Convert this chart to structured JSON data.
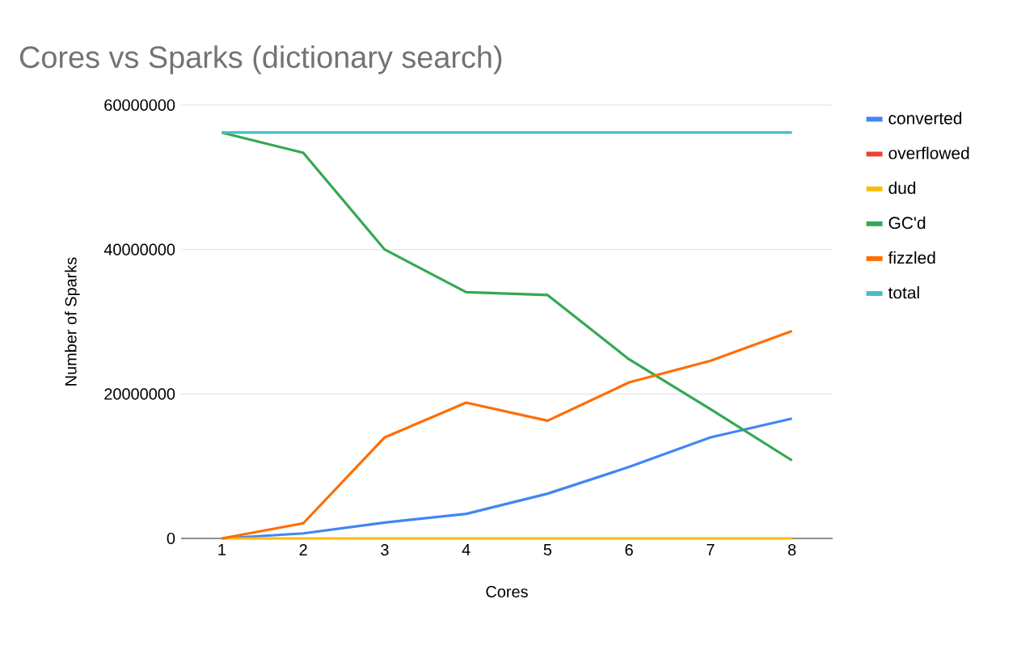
{
  "chart_data": {
    "type": "line",
    "title": "Cores vs Sparks (dictionary search)",
    "xlabel": "Cores",
    "ylabel": "Number of Sparks",
    "categories": [
      "1",
      "2",
      "3",
      "4",
      "5",
      "6",
      "7",
      "8"
    ],
    "series": [
      {
        "name": "converted",
        "color": "#4285f4",
        "values": [
          0,
          700000,
          2200000,
          3400000,
          6200000,
          9900000,
          14000000,
          16600000
        ]
      },
      {
        "name": "overflowed",
        "color": "#ea4335",
        "values": [
          null,
          null,
          null,
          null,
          null,
          null,
          null,
          null
        ]
      },
      {
        "name": "dud",
        "color": "#fbbc04",
        "values": [
          0,
          0,
          0,
          0,
          0,
          0,
          0,
          0
        ]
      },
      {
        "name": "GC'd",
        "color": "#34a853",
        "values": [
          56200000,
          53400000,
          40000000,
          34100000,
          33700000,
          24800000,
          17900000,
          10800000
        ]
      },
      {
        "name": "fizzled",
        "color": "#ff6d01",
        "values": [
          0,
          2100000,
          14000000,
          18800000,
          16300000,
          21600000,
          24600000,
          28700000
        ]
      },
      {
        "name": "total",
        "color": "#46bdc6",
        "values": [
          56200000,
          56200000,
          56200000,
          56200000,
          56200000,
          56200000,
          56200000,
          56200000
        ]
      }
    ],
    "ylim": [
      0,
      60000000
    ],
    "yticks": [
      0,
      20000000,
      40000000,
      60000000
    ],
    "grid": "y",
    "legend": "right"
  }
}
